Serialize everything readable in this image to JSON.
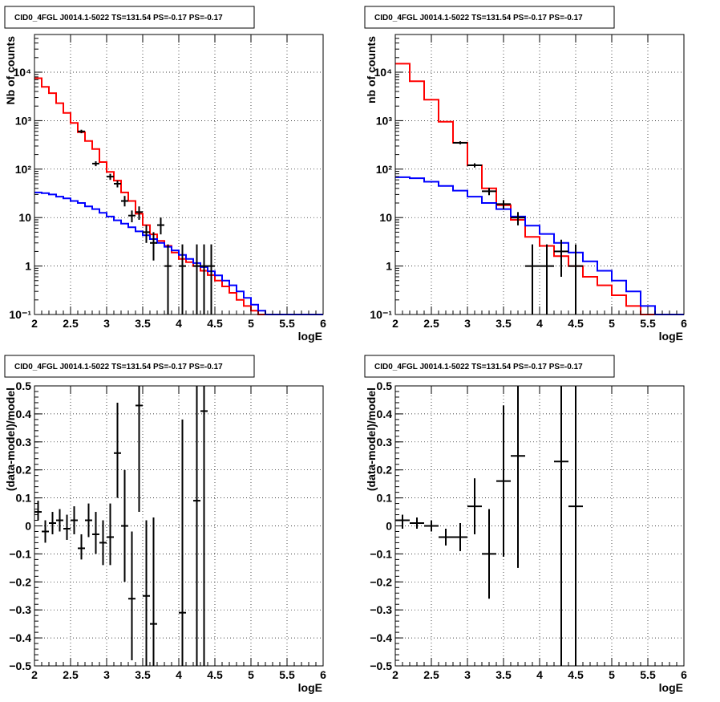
{
  "chart_data": [
    {
      "type": "line",
      "panel": "top-left",
      "title": "CID0_4FGL J0014.1-5022 TS=131.54 PS=-0.17 PS=-0.17",
      "xlabel": "logE",
      "ylabel": "Nb of counts",
      "log_y": true,
      "xlim": [
        2,
        6
      ],
      "ylim": [
        0.1,
        60000
      ],
      "grid": true,
      "x_ticks": [
        {
          "v": 2,
          "label": "2"
        },
        {
          "v": 2.5,
          "label": "2.5"
        },
        {
          "v": 3,
          "label": "3"
        },
        {
          "v": 3.5,
          "label": "3.5"
        },
        {
          "v": 4,
          "label": "4"
        },
        {
          "v": 4.5,
          "label": "4.5"
        },
        {
          "v": 5,
          "label": "5"
        },
        {
          "v": 5.5,
          "label": "5.5"
        },
        {
          "v": 6,
          "label": "6"
        }
      ],
      "y_ticks": [
        {
          "v": 0.1,
          "label": "10⁻¹"
        },
        {
          "v": 1,
          "label": "1"
        },
        {
          "v": 10,
          "label": "10"
        },
        {
          "v": 100,
          "label": "10²"
        },
        {
          "v": 1000,
          "label": "10³"
        },
        {
          "v": 10000,
          "label": "10⁴"
        }
      ],
      "step_series": [
        {
          "name": "",
          "color": "#ff0000",
          "bin_width": 0.1,
          "x": [
            2.0,
            2.1,
            2.2,
            2.3,
            2.4,
            2.5,
            2.6,
            2.7,
            2.8,
            2.9,
            3.0,
            3.1,
            3.2,
            3.3,
            3.4,
            3.5,
            3.6,
            3.7,
            3.8,
            3.9,
            4.0,
            4.1,
            4.2,
            4.3,
            4.4,
            4.5,
            4.6,
            4.7,
            4.8,
            4.9,
            5.0,
            5.1,
            5.2,
            5.3,
            5.4,
            5.5,
            5.6,
            5.7,
            5.8,
            5.9
          ],
          "y": [
            7500,
            5000,
            3700,
            2300,
            1450,
            900,
            580,
            380,
            260,
            140,
            88,
            58,
            33,
            22,
            12,
            7,
            4.5,
            3.3,
            2.6,
            1.9,
            1.4,
            1.2,
            1.0,
            0.8,
            0.65,
            0.5,
            0.38,
            0.28,
            0.2,
            0.15,
            0.12,
            0.1,
            0.1,
            0.1,
            0.1,
            0.1,
            0.1,
            0.1,
            0.1,
            0.1
          ]
        },
        {
          "name": "",
          "color": "#0000ff",
          "bin_width": 0.1,
          "x": [
            2.0,
            2.1,
            2.2,
            2.3,
            2.4,
            2.5,
            2.6,
            2.7,
            2.8,
            2.9,
            3.0,
            3.1,
            3.2,
            3.3,
            3.4,
            3.5,
            3.6,
            3.7,
            3.8,
            3.9,
            4.0,
            4.1,
            4.2,
            4.3,
            4.4,
            4.5,
            4.6,
            4.7,
            4.8,
            4.9,
            5.0,
            5.1,
            5.2,
            5.3,
            5.4,
            5.5,
            5.6,
            5.7,
            5.8,
            5.9
          ],
          "y": [
            33,
            32,
            30,
            27,
            25,
            22,
            20,
            17,
            15,
            12.5,
            10.5,
            8.8,
            7.5,
            6.3,
            5.2,
            4.3,
            3.6,
            3.0,
            2.5,
            2.1,
            1.7,
            1.4,
            1.15,
            0.95,
            0.78,
            0.64,
            0.5,
            0.4,
            0.3,
            0.22,
            0.16,
            0.12,
            0.1,
            0.1,
            0.1,
            0.1,
            0.1,
            0.1,
            0.1,
            0.1
          ]
        }
      ],
      "data_points": [
        {
          "x": 2.65,
          "y": 600,
          "xerr": 0.05,
          "yl": 550,
          "yh": 650
        },
        {
          "x": 2.85,
          "y": 130,
          "xerr": 0.05,
          "yl": 115,
          "yh": 145
        },
        {
          "x": 3.05,
          "y": 70,
          "xerr": 0.05,
          "yl": 60,
          "yh": 80
        },
        {
          "x": 3.15,
          "y": 50,
          "xerr": 0.05,
          "yl": 42,
          "yh": 58
        },
        {
          "x": 3.25,
          "y": 22,
          "xerr": 0.05,
          "yl": 17,
          "yh": 28
        },
        {
          "x": 3.35,
          "y": 11,
          "xerr": 0.05,
          "yl": 8,
          "yh": 14
        },
        {
          "x": 3.45,
          "y": 13,
          "xerr": 0.05,
          "yl": 9,
          "yh": 17
        },
        {
          "x": 3.55,
          "y": 5,
          "xerr": 0.05,
          "yl": 3,
          "yh": 7
        },
        {
          "x": 3.65,
          "y": 3,
          "xerr": 0.05,
          "yl": 1.3,
          "yh": 5
        },
        {
          "x": 3.75,
          "y": 7,
          "xerr": 0.05,
          "yl": 4.5,
          "yh": 10
        },
        {
          "x": 3.85,
          "y": 1,
          "xerr": 0.05,
          "yl": 0.1,
          "yh": 2.8
        },
        {
          "x": 4.05,
          "y": 1,
          "xerr": 0.05,
          "yl": 0.1,
          "yh": 2.8
        },
        {
          "x": 4.25,
          "y": 1,
          "xerr": 0.05,
          "yl": 0.1,
          "yh": 2.8
        },
        {
          "x": 4.35,
          "y": 1,
          "xerr": 0.05,
          "yl": 0.1,
          "yh": 2.8
        },
        {
          "x": 4.45,
          "y": 1,
          "xerr": 0.05,
          "yl": 0.1,
          "yh": 2.8
        }
      ]
    },
    {
      "type": "line",
      "panel": "top-right",
      "title": "CID0_4FGL J0014.1-5022 TS=131.54 PS=-0.17 PS=-0.17",
      "xlabel": "logE",
      "ylabel": "nb of counts",
      "log_y": true,
      "xlim": [
        2,
        6
      ],
      "ylim": [
        0.1,
        60000
      ],
      "grid": true,
      "x_ticks": [
        {
          "v": 2,
          "label": "2"
        },
        {
          "v": 2.5,
          "label": "2.5"
        },
        {
          "v": 3,
          "label": "3"
        },
        {
          "v": 3.5,
          "label": "3.5"
        },
        {
          "v": 4,
          "label": "4"
        },
        {
          "v": 4.5,
          "label": "4.5"
        },
        {
          "v": 5,
          "label": "5"
        },
        {
          "v": 5.5,
          "label": "5.5"
        },
        {
          "v": 6,
          "label": "6"
        }
      ],
      "y_ticks": [
        {
          "v": 0.1,
          "label": "10⁻¹"
        },
        {
          "v": 1,
          "label": "1"
        },
        {
          "v": 10,
          "label": "10"
        },
        {
          "v": 100,
          "label": "10²"
        },
        {
          "v": 1000,
          "label": "10³"
        },
        {
          "v": 10000,
          "label": "10⁴"
        }
      ],
      "step_series": [
        {
          "name": "",
          "color": "#ff0000",
          "bin_width": 0.2,
          "x": [
            2.0,
            2.2,
            2.4,
            2.6,
            2.8,
            3.0,
            3.2,
            3.4,
            3.6,
            3.8,
            4.0,
            4.2,
            4.4,
            4.6,
            4.8,
            5.0,
            5.2,
            5.4,
            5.6,
            5.8
          ],
          "y": [
            15000,
            6500,
            2700,
            950,
            350,
            120,
            40,
            18,
            9,
            4,
            2.6,
            1.6,
            1.0,
            0.6,
            0.4,
            0.25,
            0.15,
            0.1,
            0.1,
            0.1
          ]
        },
        {
          "name": "",
          "color": "#0000ff",
          "bin_width": 0.2,
          "x": [
            2.0,
            2.2,
            2.4,
            2.6,
            2.8,
            3.0,
            3.2,
            3.4,
            3.6,
            3.8,
            4.0,
            4.2,
            4.4,
            4.6,
            4.8,
            5.0,
            5.2,
            5.4,
            5.6,
            5.8
          ],
          "y": [
            68,
            65,
            55,
            45,
            36,
            27,
            20,
            15,
            10.5,
            6.8,
            4.6,
            3.0,
            1.9,
            1.25,
            0.8,
            0.5,
            0.3,
            0.15,
            0.1,
            0.1
          ]
        }
      ],
      "data_points": [
        {
          "x": 2.9,
          "y": 350,
          "xerr": 0.1,
          "yl": 325,
          "yh": 375
        },
        {
          "x": 3.1,
          "y": 120,
          "xerr": 0.1,
          "yl": 108,
          "yh": 132
        },
        {
          "x": 3.3,
          "y": 35,
          "xerr": 0.1,
          "yl": 29,
          "yh": 41
        },
        {
          "x": 3.5,
          "y": 19,
          "xerr": 0.1,
          "yl": 15,
          "yh": 23
        },
        {
          "x": 3.7,
          "y": 10,
          "xerr": 0.1,
          "yl": 6.9,
          "yh": 13
        },
        {
          "x": 3.9,
          "y": 1,
          "xerr": 0.1,
          "yl": 0.1,
          "yh": 2.8
        },
        {
          "x": 4.1,
          "y": 1,
          "xerr": 0.1,
          "yl": 0.1,
          "yh": 2.8
        },
        {
          "x": 4.3,
          "y": 2,
          "xerr": 0.1,
          "yl": 0.6,
          "yh": 3.5
        },
        {
          "x": 4.5,
          "y": 1,
          "xerr": 0.1,
          "yl": 0.1,
          "yh": 2.8
        }
      ]
    },
    {
      "type": "scatter",
      "panel": "bottom-left",
      "title": "CID0_4FGL J0014.1-5022 TS=131.54 PS=-0.17 PS=-0.17",
      "xlabel": "logE",
      "ylabel": "(data-model)/model",
      "log_y": false,
      "xlim": [
        2,
        6
      ],
      "ylim": [
        -0.5,
        0.5
      ],
      "grid": true,
      "x_ticks": [
        {
          "v": 2,
          "label": "2"
        },
        {
          "v": 2.5,
          "label": "2.5"
        },
        {
          "v": 3,
          "label": "3"
        },
        {
          "v": 3.5,
          "label": "3.5"
        },
        {
          "v": 4,
          "label": "4"
        },
        {
          "v": 4.5,
          "label": "4.5"
        },
        {
          "v": 5,
          "label": "5"
        },
        {
          "v": 5.5,
          "label": "5.5"
        },
        {
          "v": 6,
          "label": "6"
        }
      ],
      "y_ticks": [
        {
          "v": -0.5,
          "label": "−0.5"
        },
        {
          "v": -0.4,
          "label": "−0.4"
        },
        {
          "v": -0.3,
          "label": "−0.3"
        },
        {
          "v": -0.2,
          "label": "−0.2"
        },
        {
          "v": -0.1,
          "label": "−0.1"
        },
        {
          "v": 0,
          "label": "0"
        },
        {
          "v": 0.1,
          "label": "0.1"
        },
        {
          "v": 0.2,
          "label": "0.2"
        },
        {
          "v": 0.3,
          "label": "0.3"
        },
        {
          "v": 0.4,
          "label": "0.4"
        },
        {
          "v": 0.5,
          "label": "0.5"
        }
      ],
      "step_series": [],
      "data_points": [
        {
          "x": 2.05,
          "y": 0.05,
          "xerr": 0.05,
          "yl": 0.02,
          "yh": 0.09
        },
        {
          "x": 2.15,
          "y": -0.02,
          "xerr": 0.05,
          "yl": -0.06,
          "yh": 0.02
        },
        {
          "x": 2.25,
          "y": 0.01,
          "xerr": 0.05,
          "yl": -0.03,
          "yh": 0.05
        },
        {
          "x": 2.35,
          "y": 0.02,
          "xerr": 0.05,
          "yl": -0.02,
          "yh": 0.06
        },
        {
          "x": 2.45,
          "y": -0.01,
          "xerr": 0.05,
          "yl": -0.05,
          "yh": 0.04
        },
        {
          "x": 2.55,
          "y": 0.02,
          "xerr": 0.05,
          "yl": -0.03,
          "yh": 0.07
        },
        {
          "x": 2.65,
          "y": -0.08,
          "xerr": 0.05,
          "yl": -0.12,
          "yh": -0.03
        },
        {
          "x": 2.75,
          "y": 0.02,
          "xerr": 0.05,
          "yl": -0.04,
          "yh": 0.08
        },
        {
          "x": 2.85,
          "y": -0.03,
          "xerr": 0.05,
          "yl": -0.1,
          "yh": 0.05
        },
        {
          "x": 2.95,
          "y": -0.06,
          "xerr": 0.05,
          "yl": -0.14,
          "yh": 0.02
        },
        {
          "x": 3.05,
          "y": -0.04,
          "xerr": 0.05,
          "yl": -0.14,
          "yh": 0.08
        },
        {
          "x": 3.15,
          "y": 0.26,
          "xerr": 0.05,
          "yl": 0.1,
          "yh": 0.44
        },
        {
          "x": 3.25,
          "y": 0,
          "xerr": 0.05,
          "yl": -0.2,
          "yh": 0.2
        },
        {
          "x": 3.35,
          "y": -0.26,
          "xerr": 0.05,
          "yl": -0.48,
          "yh": -0.02
        },
        {
          "x": 3.45,
          "y": 0.43,
          "xerr": 0.05,
          "yl": 0.05,
          "yh": 0.5
        },
        {
          "x": 3.55,
          "y": -0.25,
          "xerr": 0.05,
          "yl": -0.5,
          "yh": 0.02
        },
        {
          "x": 3.65,
          "y": -0.35,
          "xerr": 0.05,
          "yl": -0.5,
          "yh": 0.03
        },
        {
          "x": 4.05,
          "y": -0.31,
          "xerr": 0.05,
          "yl": -0.5,
          "yh": 0.38
        },
        {
          "x": 4.25,
          "y": 0.09,
          "xerr": 0.05,
          "yl": -0.5,
          "yh": 0.5
        },
        {
          "x": 4.35,
          "y": 0.41,
          "xerr": 0.05,
          "yl": -0.5,
          "yh": 0.5
        }
      ]
    },
    {
      "type": "scatter",
      "panel": "bottom-right",
      "title": "CID0_4FGL J0014.1-5022 TS=131.54 PS=-0.17 PS=-0.17",
      "xlabel": "logE",
      "ylabel": "(data-model)/model",
      "log_y": false,
      "xlim": [
        2,
        6
      ],
      "ylim": [
        -0.5,
        0.5
      ],
      "grid": true,
      "x_ticks": [
        {
          "v": 2,
          "label": "2"
        },
        {
          "v": 2.5,
          "label": "2.5"
        },
        {
          "v": 3,
          "label": "3"
        },
        {
          "v": 3.5,
          "label": "3.5"
        },
        {
          "v": 4,
          "label": "4"
        },
        {
          "v": 4.5,
          "label": "4.5"
        },
        {
          "v": 5,
          "label": "5"
        },
        {
          "v": 5.5,
          "label": "5.5"
        },
        {
          "v": 6,
          "label": "6"
        }
      ],
      "y_ticks": [
        {
          "v": -0.5,
          "label": "−0.5"
        },
        {
          "v": -0.4,
          "label": "−0.4"
        },
        {
          "v": -0.3,
          "label": "−0.3"
        },
        {
          "v": -0.2,
          "label": "−0.2"
        },
        {
          "v": -0.1,
          "label": "−0.1"
        },
        {
          "v": 0,
          "label": "0"
        },
        {
          "v": 0.1,
          "label": "0.1"
        },
        {
          "v": 0.2,
          "label": "0.2"
        },
        {
          "v": 0.3,
          "label": "0.3"
        },
        {
          "v": 0.4,
          "label": "0.4"
        },
        {
          "v": 0.5,
          "label": "0.5"
        }
      ],
      "step_series": [],
      "data_points": [
        {
          "x": 2.1,
          "y": 0.02,
          "xerr": 0.1,
          "yl": -0.01,
          "yh": 0.04
        },
        {
          "x": 2.3,
          "y": 0.01,
          "xerr": 0.1,
          "yl": -0.01,
          "yh": 0.03
        },
        {
          "x": 2.5,
          "y": 0,
          "xerr": 0.1,
          "yl": -0.02,
          "yh": 0.02
        },
        {
          "x": 2.7,
          "y": -0.04,
          "xerr": 0.1,
          "yl": -0.07,
          "yh": -0.01
        },
        {
          "x": 2.9,
          "y": -0.04,
          "xerr": 0.1,
          "yl": -0.09,
          "yh": 0.01
        },
        {
          "x": 3.1,
          "y": 0.07,
          "xerr": 0.1,
          "yl": -0.03,
          "yh": 0.17
        },
        {
          "x": 3.3,
          "y": -0.1,
          "xerr": 0.1,
          "yl": -0.26,
          "yh": 0.06
        },
        {
          "x": 3.5,
          "y": 0.16,
          "xerr": 0.1,
          "yl": -0.11,
          "yh": 0.43
        },
        {
          "x": 3.7,
          "y": 0.25,
          "xerr": 0.1,
          "yl": -0.15,
          "yh": 0.5
        },
        {
          "x": 4.3,
          "y": 0.23,
          "xerr": 0.1,
          "yl": -0.5,
          "yh": 0.5
        },
        {
          "x": 4.5,
          "y": 0.07,
          "xerr": 0.1,
          "yl": -0.5,
          "yh": 0.5
        }
      ]
    }
  ]
}
